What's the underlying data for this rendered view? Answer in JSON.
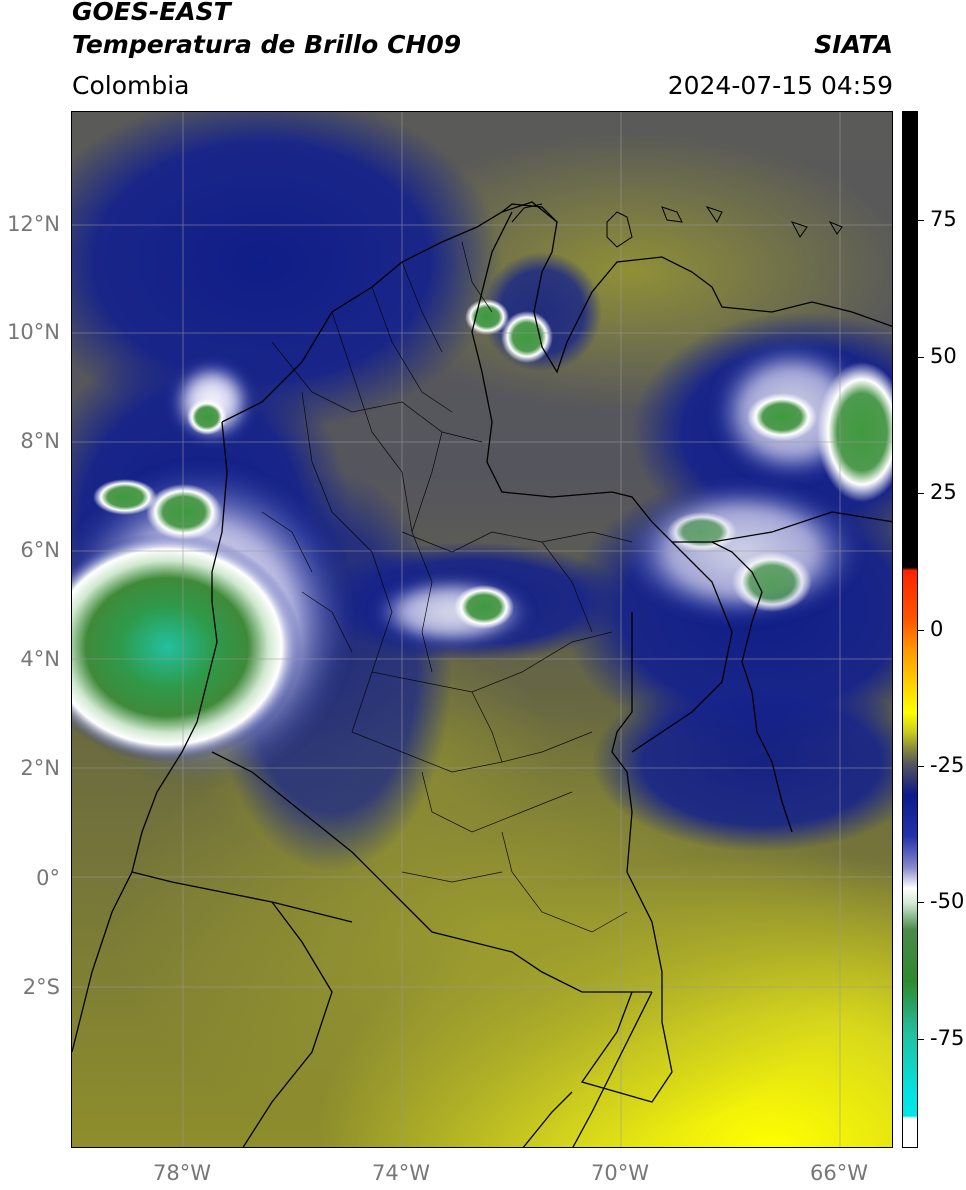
{
  "header": {
    "satellite": "GOES-EAST",
    "product": "Temperatura de Brillo CH09",
    "agency": "SIATA",
    "region": "Colombia",
    "timestamp": "2024-07-15 04:59"
  },
  "axes": {
    "lat_labels": [
      "12°N",
      "10°N",
      "8°N",
      "6°N",
      "4°N",
      "2°N",
      "0°",
      "2°S"
    ],
    "lon_labels": [
      "78°W",
      "74°W",
      "70°W",
      "66°W"
    ]
  },
  "colorbar": {
    "tick_labels": [
      "75",
      "50",
      "25",
      "0",
      "-25",
      "-50",
      "-75"
    ],
    "tick_values": [
      75,
      50,
      25,
      0,
      -25,
      -50,
      -75
    ],
    "range": [
      -95,
      95
    ],
    "colors": {
      "warm_black": "#000000",
      "red": "#ff2200",
      "orange": "#ff9900",
      "yellow": "#ffff00",
      "olive": "#b8b82a",
      "gray": "#55555e",
      "navy": "#0c1a8a",
      "white": "#ffffff",
      "green": "#2e8a2e",
      "teal": "#23c0a0",
      "cyan": "#00e5e5"
    }
  }
}
